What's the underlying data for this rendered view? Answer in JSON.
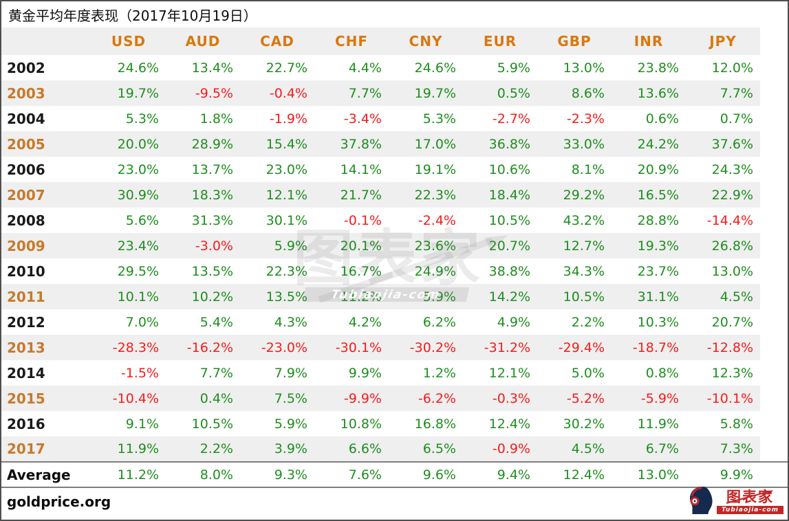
{
  "title": "黄金平均年度表现（2017年10月19日）",
  "chart_data": {
    "type": "table",
    "title": "黄金平均年度表现（2017年10月19日）",
    "unit": "percent",
    "columns": [
      "USD",
      "AUD",
      "CAD",
      "CHF",
      "CNY",
      "EUR",
      "GBP",
      "INR",
      "JPY"
    ],
    "years": [
      "2002",
      "2003",
      "2004",
      "2005",
      "2006",
      "2007",
      "2008",
      "2009",
      "2010",
      "2011",
      "2012",
      "2013",
      "2014",
      "2015",
      "2016",
      "2017"
    ],
    "rows": [
      [
        "24.6%",
        "13.4%",
        "22.7%",
        "4.4%",
        "24.6%",
        "5.9%",
        "13.0%",
        "23.8%",
        "12.0%"
      ],
      [
        "19.7%",
        "-9.5%",
        "-0.4%",
        "7.7%",
        "19.7%",
        "0.5%",
        "8.6%",
        "13.6%",
        "7.7%"
      ],
      [
        "5.3%",
        "1.8%",
        "-1.9%",
        "-3.4%",
        "5.3%",
        "-2.7%",
        "-2.3%",
        "0.6%",
        "0.7%"
      ],
      [
        "20.0%",
        "28.9%",
        "15.4%",
        "37.8%",
        "17.0%",
        "36.8%",
        "33.0%",
        "24.2%",
        "37.6%"
      ],
      [
        "23.0%",
        "13.7%",
        "23.0%",
        "14.1%",
        "19.1%",
        "10.6%",
        "8.1%",
        "20.9%",
        "24.3%"
      ],
      [
        "30.9%",
        "18.3%",
        "12.1%",
        "21.7%",
        "22.3%",
        "18.4%",
        "29.2%",
        "16.5%",
        "22.9%"
      ],
      [
        "5.6%",
        "31.3%",
        "30.1%",
        "-0.1%",
        "-2.4%",
        "10.5%",
        "43.2%",
        "28.8%",
        "-14.4%"
      ],
      [
        "23.4%",
        "-3.0%",
        "5.9%",
        "20.1%",
        "23.6%",
        "20.7%",
        "12.7%",
        "19.3%",
        "26.8%"
      ],
      [
        "29.5%",
        "13.5%",
        "22.3%",
        "16.7%",
        "24.9%",
        "38.8%",
        "34.3%",
        "23.7%",
        "13.0%"
      ],
      [
        "10.1%",
        "10.2%",
        "13.5%",
        "11.2%",
        "5.9%",
        "14.2%",
        "10.5%",
        "31.1%",
        "4.5%"
      ],
      [
        "7.0%",
        "5.4%",
        "4.3%",
        "4.2%",
        "6.2%",
        "4.9%",
        "2.2%",
        "10.3%",
        "20.7%"
      ],
      [
        "-28.3%",
        "-16.2%",
        "-23.0%",
        "-30.1%",
        "-30.2%",
        "-31.2%",
        "-29.4%",
        "-18.7%",
        "-12.8%"
      ],
      [
        "-1.5%",
        "7.7%",
        "7.9%",
        "9.9%",
        "1.2%",
        "12.1%",
        "5.0%",
        "0.8%",
        "12.3%"
      ],
      [
        "-10.4%",
        "0.4%",
        "7.5%",
        "-9.9%",
        "-6.2%",
        "-0.3%",
        "-5.2%",
        "-5.9%",
        "-10.1%"
      ],
      [
        "9.1%",
        "10.5%",
        "5.9%",
        "10.8%",
        "16.8%",
        "12.4%",
        "30.2%",
        "11.9%",
        "5.8%"
      ],
      [
        "11.9%",
        "2.2%",
        "3.9%",
        "6.6%",
        "6.5%",
        "-0.9%",
        "4.5%",
        "6.7%",
        "7.3%"
      ]
    ],
    "average_label": "Average",
    "average": [
      "11.2%",
      "8.0%",
      "9.3%",
      "7.6%",
      "9.6%",
      "9.4%",
      "12.4%",
      "13.0%",
      "9.9%"
    ]
  },
  "watermark": {
    "text": "图表家",
    "subtext": "Tubiaojia-com"
  },
  "footer": {
    "source": "goldprice.org",
    "logo_text": "图表家",
    "logo_subtext": "Tubiaojia-com"
  },
  "colors": {
    "positive": "#1e8e1e",
    "negative": "#fb1a1a",
    "header_orange": "#d9780f",
    "year_odd_orange": "#c8792b",
    "year_even_black": "#1a1a1a",
    "row_alt_gray": "#efefef",
    "logo_red": "#c32626",
    "logo_navy": "#16294e"
  }
}
